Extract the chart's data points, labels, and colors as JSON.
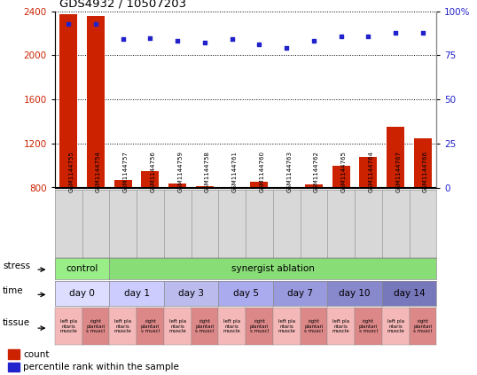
{
  "title": "GDS4932 / 10507203",
  "samples": [
    "GSM1144755",
    "GSM1144754",
    "GSM1144757",
    "GSM1144756",
    "GSM1144759",
    "GSM1144758",
    "GSM1144761",
    "GSM1144760",
    "GSM1144763",
    "GSM1144762",
    "GSM1144765",
    "GSM1144764",
    "GSM1144767",
    "GSM1144766"
  ],
  "counts": [
    2370,
    2360,
    870,
    950,
    840,
    810,
    790,
    850,
    770,
    830,
    1000,
    1080,
    1350,
    1250
  ],
  "percentiles": [
    93,
    93,
    84,
    85,
    83,
    82,
    84,
    81,
    79,
    83,
    86,
    86,
    88,
    88
  ],
  "ylim_left": [
    800,
    2400
  ],
  "ylim_right": [
    0,
    100
  ],
  "yticks_left": [
    800,
    1200,
    1600,
    2000,
    2400
  ],
  "yticks_right": [
    0,
    25,
    50,
    75,
    100
  ],
  "bar_color": "#cc2200",
  "dot_color": "#2222cc",
  "stress_data": [
    {
      "text": "control",
      "start": 0,
      "end": 2,
      "color": "#99ee88"
    },
    {
      "text": "synergist ablation",
      "start": 2,
      "end": 14,
      "color": "#88dd77"
    }
  ],
  "time_data": [
    {
      "text": "day 0",
      "start": 0,
      "end": 2,
      "color": "#ddddff"
    },
    {
      "text": "day 1",
      "start": 2,
      "end": 4,
      "color": "#ccccff"
    },
    {
      "text": "day 3",
      "start": 4,
      "end": 6,
      "color": "#bbbbee"
    },
    {
      "text": "day 5",
      "start": 6,
      "end": 8,
      "color": "#aaaaee"
    },
    {
      "text": "day 7",
      "start": 8,
      "end": 10,
      "color": "#9999dd"
    },
    {
      "text": "day 10",
      "start": 10,
      "end": 12,
      "color": "#8888cc"
    },
    {
      "text": "day 14",
      "start": 12,
      "end": 14,
      "color": "#7777bb"
    }
  ],
  "tissue_left_color": "#f4b8b8",
  "tissue_right_color": "#dd8888",
  "background_color": "#ffffff",
  "plot_bg": "#ffffff",
  "grid_color": "#000000",
  "sample_box_color": "#d8d8d8"
}
